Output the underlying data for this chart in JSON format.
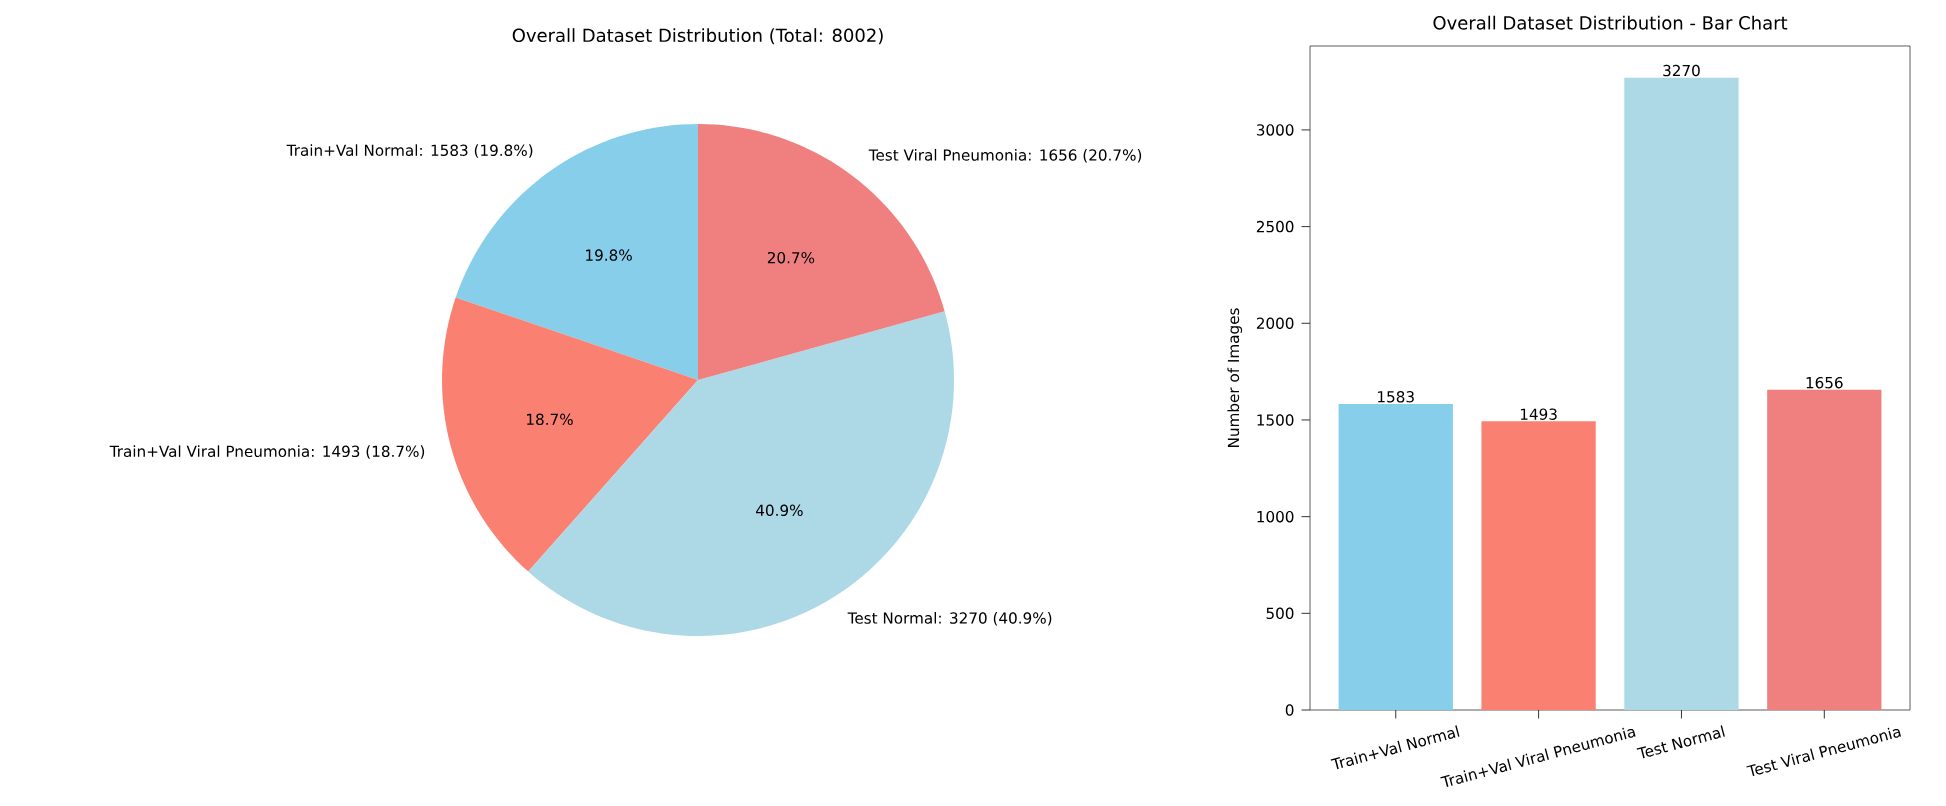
{
  "chart_data": [
    {
      "type": "pie",
      "title": "Overall Dataset Distribution (Total: 8002)",
      "categories": [
        "Train+Val Normal: 1583 (19.8%)",
        "Train+Val Viral Pneumonia: 1493 (18.7%)",
        "Test Normal: 3270 (40.9%)",
        "Test Viral Pneumonia: 1656 (20.7%)"
      ],
      "values": [
        19.8,
        18.7,
        40.9,
        20.7
      ],
      "value_labels": [
        "19.8%",
        "18.7%",
        "40.9%",
        "20.7%"
      ],
      "colors": [
        "#87ceeb",
        "#fa8072",
        "#add8e6",
        "#f08080"
      ]
    },
    {
      "type": "bar",
      "title": "Overall Dataset Distribution - Bar Chart",
      "ylabel": "Number of Images",
      "categories": [
        "Train+Val Normal",
        "Train+Val Viral Pneumonia",
        "Test Normal",
        "Test Viral Pneumonia"
      ],
      "values": [
        1583,
        1493,
        3270,
        1656
      ],
      "colors": [
        "#87ceeb",
        "#fa8072",
        "#add8e6",
        "#f08080"
      ],
      "ylim": [
        0,
        3434
      ],
      "yticks": [
        0,
        500,
        1000,
        1500,
        2000,
        2500,
        3000
      ],
      "data_labels": true
    }
  ]
}
